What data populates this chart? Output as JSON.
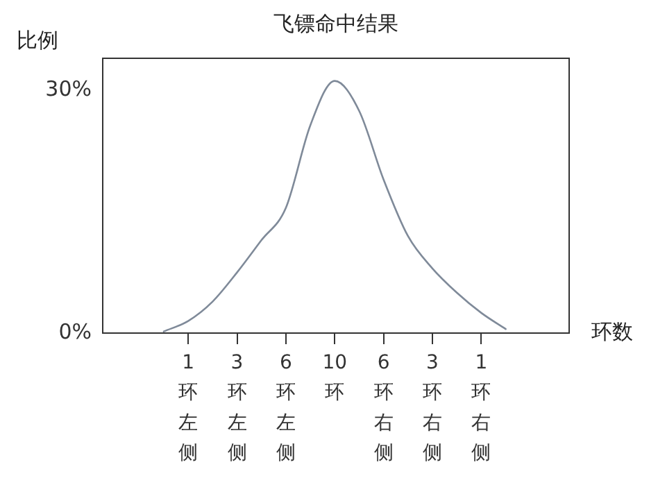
{
  "chart_data": {
    "type": "line",
    "title": "飞镖命中结果",
    "ylabel": "比例",
    "xlabel": "环数",
    "categories": [
      null,
      "1环左侧",
      null,
      "3环左侧",
      null,
      "6环左侧",
      null,
      "10环",
      null,
      "6环右侧",
      null,
      "3环右侧",
      null,
      "1环右侧",
      null
    ],
    "series": [
      {
        "color": "#7f8a99",
        "values": [
          0.2,
          1.5,
          3.9,
          7.5,
          11.5,
          15.5,
          25.7,
          31.2,
          27.5,
          19,
          12,
          8,
          5,
          2.5,
          0.5
        ]
      }
    ],
    "ylim": [
      0,
      34
    ],
    "yticks": [
      {
        "value": 0,
        "label": "0%"
      },
      {
        "value": 30,
        "label": "30%"
      }
    ],
    "grid": false,
    "legend": false,
    "marker": "none",
    "line_style": "solid"
  }
}
